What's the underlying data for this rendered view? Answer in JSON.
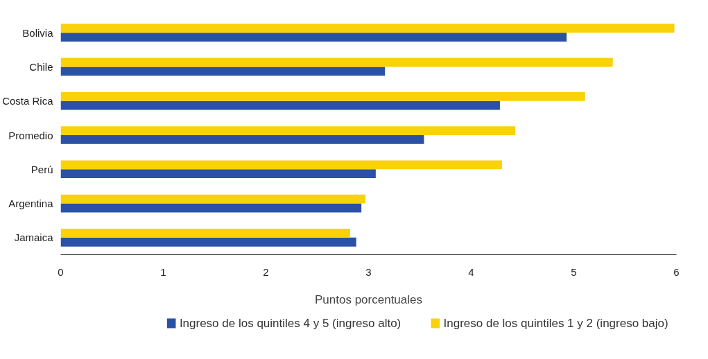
{
  "chart_data": {
    "type": "bar",
    "orientation": "horizontal",
    "categories": [
      "Bolivia",
      "Chile",
      "Costa Rica",
      "Promedio",
      "Perú",
      "Argentina",
      "Jamaica"
    ],
    "series": [
      {
        "name": "Ingreso de los quintiles 4 y 5 (ingreso alto)",
        "color": "#2a51a6",
        "values": [
          4.93,
          3.16,
          4.28,
          3.54,
          3.07,
          2.93,
          2.88
        ]
      },
      {
        "name": "Ingreso de los quintiles 1 y 2 (ingreso bajo)",
        "color": "#f9d20a",
        "values": [
          5.98,
          5.38,
          5.11,
          4.43,
          4.3,
          2.97,
          2.82
        ]
      }
    ],
    "xlim": [
      0,
      6
    ],
    "xticks": [
      0,
      1,
      2,
      3,
      4,
      5,
      6
    ],
    "xlabel": "Puntos porcentuales",
    "grid": false,
    "legend": "bottom"
  }
}
